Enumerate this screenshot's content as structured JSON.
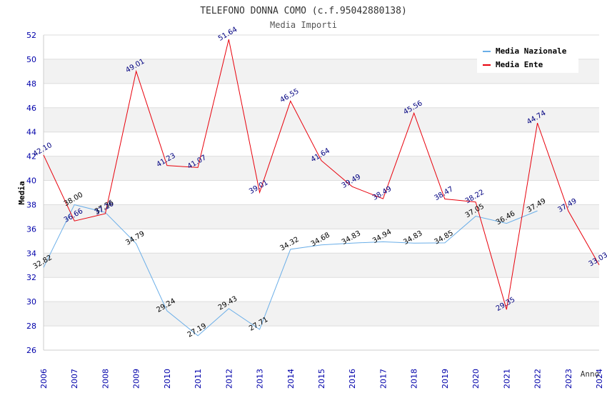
{
  "chart_data": {
    "type": "line",
    "title": "TELEFONO DONNA COMO (c.f.95042880138)",
    "subtitle": "Media Importi",
    "xlabel": "Anno",
    "ylabel": "Media",
    "ylim": [
      26,
      52
    ],
    "ystep": 2,
    "yticks": [
      "26",
      "28",
      "30",
      "32",
      "34",
      "36",
      "38",
      "40",
      "42",
      "44",
      "46",
      "48",
      "50",
      "52"
    ],
    "categories": [
      "2006",
      "2007",
      "2008",
      "2009",
      "2010",
      "2011",
      "2012",
      "2013",
      "2014",
      "2015",
      "2016",
      "2017",
      "2018",
      "2019",
      "2020",
      "2021",
      "2022",
      "2023",
      "2024"
    ],
    "series": [
      {
        "name": "Media Nazionale",
        "color": "#6aaee8",
        "values": [
          32.82,
          38.0,
          37.36,
          34.79,
          29.24,
          27.19,
          29.43,
          27.71,
          34.32,
          34.68,
          34.83,
          34.94,
          34.83,
          34.85,
          37.05,
          36.46,
          37.49,
          null,
          null
        ],
        "labels": [
          "32.82",
          "38.00",
          "37.36",
          "34.79",
          "29.24",
          "27.19",
          "29.43",
          "27.71",
          "34.32",
          "34.68",
          "34.83",
          "34.94",
          "34.83",
          "34.85",
          "37.05",
          "36.46",
          "37.49",
          "",
          ""
        ]
      },
      {
        "name": "Media Ente",
        "color": "#e8000b",
        "values": [
          42.1,
          36.66,
          37.26,
          49.01,
          41.23,
          41.07,
          51.64,
          39.01,
          46.55,
          41.64,
          39.49,
          38.49,
          45.56,
          38.47,
          38.22,
          29.35,
          44.74,
          37.49,
          33.03
        ],
        "labels": [
          "42.10",
          "36.66",
          "37.26",
          "49.01",
          "41.23",
          "41.07",
          "51.64",
          "39.01",
          "46.55",
          "41.64",
          "39.49",
          "38.49",
          "45.56",
          "38.47",
          "38.22",
          "29.35",
          "44.74",
          "37.49",
          "33.03"
        ]
      }
    ],
    "legend": "top-right",
    "grid": true
  }
}
